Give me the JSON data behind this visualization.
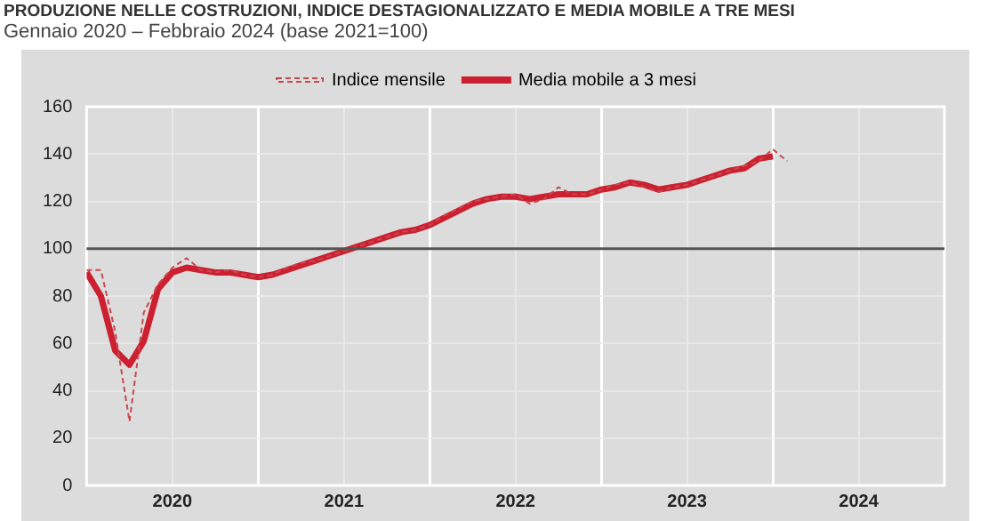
{
  "chart_data": {
    "type": "line",
    "title": "PRODUZIONE NELLE COSTRUZIONI, INDICE DESTAGIONALIZZATO E MEDIA MOBILE A TRE MESI",
    "subtitle": "Gennaio 2020 – Febbraio 2024 (base 2021=100)",
    "x": [
      "2020-01",
      "2020-02",
      "2020-03",
      "2020-04",
      "2020-05",
      "2020-06",
      "2020-07",
      "2020-08",
      "2020-09",
      "2020-10",
      "2020-11",
      "2020-12",
      "2021-01",
      "2021-02",
      "2021-03",
      "2021-04",
      "2021-05",
      "2021-06",
      "2021-07",
      "2021-08",
      "2021-09",
      "2021-10",
      "2021-11",
      "2021-12",
      "2022-01",
      "2022-02",
      "2022-03",
      "2022-04",
      "2022-05",
      "2022-06",
      "2022-07",
      "2022-08",
      "2022-09",
      "2022-10",
      "2022-11",
      "2022-12",
      "2023-01",
      "2023-02",
      "2023-03",
      "2023-04",
      "2023-05",
      "2023-06",
      "2023-07",
      "2023-08",
      "2023-09",
      "2023-10",
      "2023-11",
      "2023-12",
      "2024-01",
      "2024-02"
    ],
    "series": [
      {
        "name": "Indice mensile",
        "color": "#c8484f",
        "line_style": "dashed",
        "values": [
          91,
          91,
          65,
          27,
          73,
          85,
          92,
          96,
          91,
          90,
          91,
          89,
          88,
          89,
          92,
          94,
          95,
          97,
          99,
          101,
          103,
          105,
          107,
          108,
          110,
          114,
          117,
          120,
          121,
          122,
          123,
          119,
          121,
          126,
          123,
          123,
          125,
          127,
          128,
          126,
          124,
          126,
          127,
          129,
          131,
          133,
          135,
          137,
          142,
          137
        ]
      },
      {
        "name": "Media mobile a 3 mesi",
        "color": "#cc2030",
        "line_style": "solid",
        "values": [
          90,
          80,
          57,
          51,
          61,
          83,
          90,
          92,
          91,
          90,
          90,
          89,
          88,
          89,
          91,
          93,
          95,
          97,
          99,
          101,
          103,
          105,
          107,
          108,
          110,
          113,
          116,
          119,
          121,
          122,
          122,
          121,
          122,
          123,
          123,
          123,
          125,
          126,
          128,
          127,
          125,
          126,
          127,
          129,
          131,
          133,
          134,
          138,
          139,
          null
        ]
      }
    ],
    "xlim": [
      "2020-01",
      "2025-01"
    ],
    "xticks": [
      {
        "value": "2020-07",
        "label": "2020"
      },
      {
        "value": "2021-01",
        "label": null
      },
      {
        "value": "2021-07",
        "label": "2021"
      },
      {
        "value": "2022-01",
        "label": null
      },
      {
        "value": "2022-07",
        "label": "2022"
      },
      {
        "value": "2023-01",
        "label": null
      },
      {
        "value": "2023-07",
        "label": "2023"
      },
      {
        "value": "2024-01",
        "label": null
      },
      {
        "value": "2024-07",
        "label": "2024"
      }
    ],
    "ylim": [
      0,
      160
    ],
    "yticks": [
      0,
      20,
      40,
      60,
      80,
      100,
      120,
      140,
      160
    ],
    "ref_lines": [
      {
        "axis": "y",
        "value": 100,
        "color": "#555555"
      }
    ],
    "grid": true,
    "legend": "top",
    "marker": "none"
  }
}
